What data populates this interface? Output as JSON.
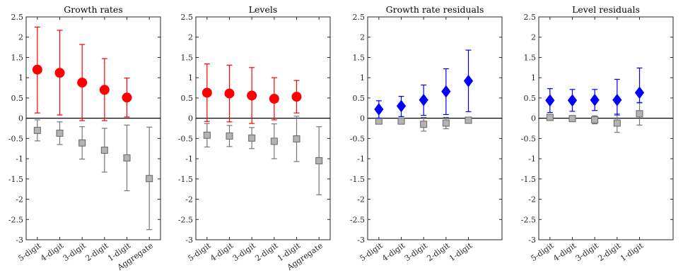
{
  "chart_data": [
    {
      "type": "scatter",
      "title": "Growth rates",
      "categories": [
        "5-digit",
        "4-digit",
        "3-digit",
        "2-digit",
        "1-digit",
        "Aggregate"
      ],
      "ylim": [
        -3,
        2.5
      ],
      "yticks": [
        2.5,
        2,
        1.5,
        1,
        0.5,
        0,
        -0.5,
        -1,
        -1.5,
        -2,
        -2.5,
        -3
      ],
      "ytick_labels": [
        "2.5",
        "2",
        "1.5",
        "1",
        "0.5",
        "0",
        "-0.5",
        "-1",
        "-1.5",
        "-2",
        "-2.5",
        "-3"
      ],
      "zero_line": true,
      "series": [
        {
          "marker": "circle",
          "color": "#ff0000",
          "values": [
            1.2,
            1.12,
            0.88,
            0.7,
            0.51,
            null
          ],
          "lower": [
            0.13,
            0.08,
            -0.06,
            -0.06,
            0.03,
            null
          ],
          "upper": [
            2.25,
            2.17,
            1.82,
            1.47,
            0.99,
            null
          ]
        },
        {
          "marker": "square",
          "color": "#b3b3b3",
          "values": [
            -0.3,
            -0.37,
            -0.61,
            -0.79,
            -0.98,
            -1.49
          ],
          "lower": [
            -0.56,
            -0.65,
            -1.01,
            -1.33,
            -1.79,
            -2.75
          ],
          "upper": [
            -0.04,
            -0.09,
            -0.21,
            -0.25,
            -0.17,
            -0.22
          ]
        }
      ]
    },
    {
      "type": "scatter",
      "title": "Levels",
      "categories": [
        "5-digit",
        "4-digit",
        "3-digit",
        "2-digit",
        "1-digit",
        "Aggregate"
      ],
      "ylim": [
        -3,
        2.5
      ],
      "yticks": [
        2.5,
        2,
        1.5,
        1,
        0.5,
        0,
        -0.5,
        -1,
        -1.5,
        -2,
        -2.5,
        -3
      ],
      "ytick_labels": [
        "2.5",
        "2",
        "1.5",
        "1",
        "0.5",
        "0",
        "-0.5",
        "-1",
        "-1.5",
        "-2",
        "-2.5",
        "-3"
      ],
      "zero_line": true,
      "series": [
        {
          "marker": "circle",
          "color": "#ff0000",
          "values": [
            0.63,
            0.61,
            0.56,
            0.48,
            0.53,
            null
          ],
          "lower": [
            -0.08,
            -0.09,
            -0.13,
            -0.04,
            0.13,
            null
          ],
          "upper": [
            1.34,
            1.31,
            1.25,
            1.0,
            0.93,
            null
          ]
        },
        {
          "marker": "square",
          "color": "#b3b3b3",
          "values": [
            -0.42,
            -0.44,
            -0.49,
            -0.57,
            -0.51,
            -1.05
          ],
          "lower": [
            -0.71,
            -0.7,
            -0.75,
            -1.0,
            -1.07,
            -1.89
          ],
          "upper": [
            -0.13,
            -0.18,
            -0.23,
            -0.14,
            0.05,
            -0.21
          ]
        }
      ]
    },
    {
      "type": "scatter",
      "title": "Growth rate residuals",
      "categories": [
        "5-digit",
        "4-digit",
        "3-digit",
        "2-digit",
        "1-digit"
      ],
      "ylim": [
        -3,
        2.5
      ],
      "yticks": [
        2.5,
        2,
        1.5,
        1,
        0.5,
        0,
        -0.5,
        -1,
        -1.5,
        -2,
        -2.5,
        -3
      ],
      "ytick_labels": [
        "2.5",
        "2",
        "1.5",
        "1",
        "0.5",
        "0",
        "-0.5",
        "-1",
        "-1.5",
        "-2",
        "-2.5",
        "-3"
      ],
      "zero_line": true,
      "series": [
        {
          "marker": "diamond",
          "color": "#0000ff",
          "values": [
            0.22,
            0.3,
            0.45,
            0.66,
            0.92
          ],
          "lower": [
            0.0,
            0.04,
            0.07,
            0.09,
            0.16
          ],
          "upper": [
            0.43,
            0.54,
            0.82,
            1.22,
            1.68
          ]
        },
        {
          "marker": "square",
          "color": "#b3b3b3",
          "values": [
            -0.07,
            -0.07,
            -0.15,
            -0.12,
            -0.05
          ],
          "lower": [
            -0.12,
            -0.13,
            -0.32,
            -0.26,
            -0.1
          ],
          "upper": [
            -0.02,
            -0.01,
            0.02,
            0.02,
            0.0
          ]
        }
      ]
    },
    {
      "type": "scatter",
      "title": "Level residuals",
      "categories": [
        "5-digit",
        "4-digit",
        "3-digit",
        "2-digit",
        "1-digit"
      ],
      "ylim": [
        -3,
        2.5
      ],
      "yticks": [
        2.5,
        2,
        1.5,
        1,
        0.5,
        0,
        -0.5,
        -1,
        -1.5,
        -2,
        -2.5,
        -3
      ],
      "ytick_labels": [
        "2.5",
        "2",
        "1.5",
        "1",
        "0.5",
        "0",
        "-0.5",
        "-1",
        "-1.5",
        "-2",
        "-2.5",
        "-3"
      ],
      "zero_line": true,
      "series": [
        {
          "marker": "diamond",
          "color": "#0000ff",
          "values": [
            0.44,
            0.44,
            0.45,
            0.45,
            0.63
          ],
          "lower": [
            0.14,
            0.17,
            0.19,
            0.08,
            0.38
          ],
          "upper": [
            0.73,
            0.71,
            0.71,
            0.96,
            1.24
          ]
        },
        {
          "marker": "square",
          "color": "#b3b3b3",
          "values": [
            0.02,
            -0.01,
            -0.04,
            -0.12,
            0.11
          ],
          "lower": [
            -0.04,
            -0.06,
            -0.14,
            -0.35,
            -0.17
          ],
          "upper": [
            0.06,
            0.04,
            0.06,
            0.11,
            0.39
          ]
        }
      ]
    }
  ]
}
